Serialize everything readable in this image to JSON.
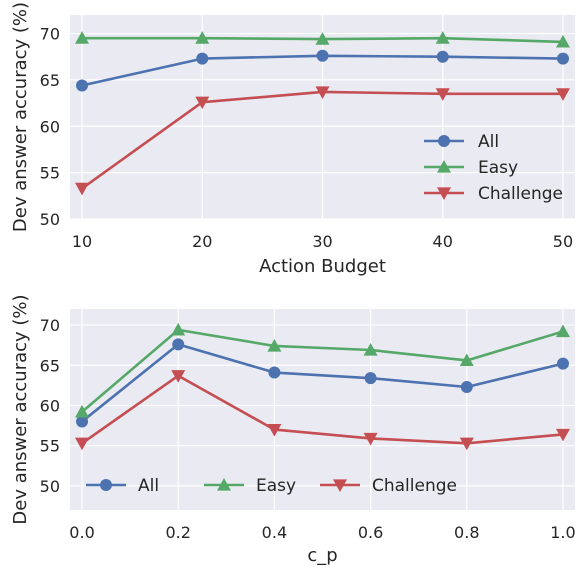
{
  "chart_data": [
    {
      "type": "line",
      "xlabel": "Action Budget",
      "ylabel": "Dev answer accuracy (%)",
      "x": [
        10,
        20,
        30,
        40,
        50
      ],
      "x_tick_labels": [
        "10",
        "20",
        "30",
        "40",
        "50"
      ],
      "xlim": [
        9,
        51
      ],
      "ylim": [
        50,
        72
      ],
      "y_ticks": [
        50,
        55,
        60,
        65,
        70
      ],
      "grid": true,
      "legend_placement": "lower-right",
      "legend_columns": 1,
      "series": [
        {
          "name": "All",
          "color": "#4c72b0",
          "marker": "circle",
          "values": [
            64.4,
            67.3,
            67.6,
            67.5,
            67.3
          ]
        },
        {
          "name": "Easy",
          "color": "#55a868",
          "marker": "triangle-up",
          "values": [
            69.5,
            69.5,
            69.4,
            69.5,
            69.1
          ]
        },
        {
          "name": "Challenge",
          "color": "#c44e52",
          "marker": "triangle-down",
          "values": [
            53.3,
            62.6,
            63.7,
            63.5,
            63.5
          ]
        }
      ]
    },
    {
      "type": "line",
      "xlabel": "c_p",
      "ylabel": "Dev answer accuracy (%)",
      "x": [
        0.0,
        0.2,
        0.4,
        0.6,
        0.8,
        1.0
      ],
      "x_tick_labels": [
        "0.0",
        "0.2",
        "0.4",
        "0.6",
        "0.8",
        "1.0"
      ],
      "xlim": [
        -0.025,
        1.025
      ],
      "ylim": [
        47,
        72
      ],
      "y_ticks": [
        50,
        55,
        60,
        65,
        70
      ],
      "grid": true,
      "legend_placement": "lower-center",
      "legend_columns": 3,
      "series": [
        {
          "name": "All",
          "color": "#4c72b0",
          "marker": "circle",
          "values": [
            58.0,
            67.6,
            64.1,
            63.4,
            62.3,
            65.2
          ]
        },
        {
          "name": "Easy",
          "color": "#55a868",
          "marker": "triangle-up",
          "values": [
            59.2,
            69.4,
            67.4,
            66.9,
            65.6,
            69.2
          ]
        },
        {
          "name": "Challenge",
          "color": "#c44e52",
          "marker": "triangle-down",
          "values": [
            55.3,
            63.7,
            57.0,
            55.9,
            55.3,
            56.4
          ]
        }
      ]
    }
  ]
}
